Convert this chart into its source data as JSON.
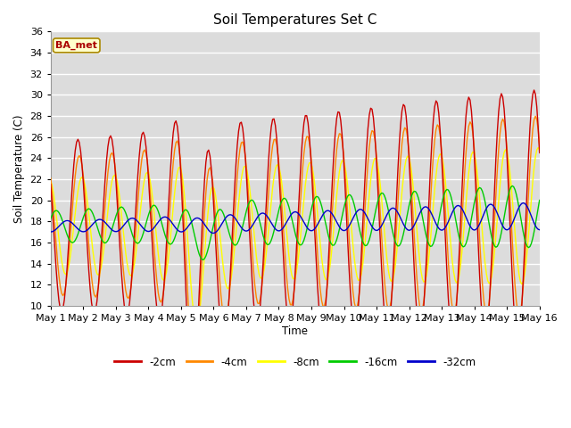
{
  "title": "Soil Temperatures Set C",
  "xlabel": "Time",
  "ylabel": "Soil Temperature (C)",
  "ylim": [
    10,
    36
  ],
  "xlim": [
    0,
    15
  ],
  "xticks": [
    0,
    1,
    2,
    3,
    4,
    5,
    6,
    7,
    8,
    9,
    10,
    11,
    12,
    13,
    14,
    15
  ],
  "xtick_labels": [
    "May 1",
    "May 2",
    "May 3",
    "May 4",
    "May 5",
    "May 6",
    "May 7",
    "May 8",
    "May 9",
    "May 10",
    "May 11",
    "May 12",
    "May 13",
    "May 14",
    "May 15",
    "May 16"
  ],
  "colors": {
    "-2cm": "#cc0000",
    "-4cm": "#ff8800",
    "-8cm": "#ffff00",
    "-16cm": "#00cc00",
    "-32cm": "#0000cc"
  },
  "annotation_text": "BA_met",
  "annotation_color": "#aa0000",
  "annotation_bg": "#ffffcc",
  "annotation_border": "#aa8800",
  "title_fontsize": 11,
  "axis_bg": "#dcdcdc",
  "grid_color": "#ffffff"
}
